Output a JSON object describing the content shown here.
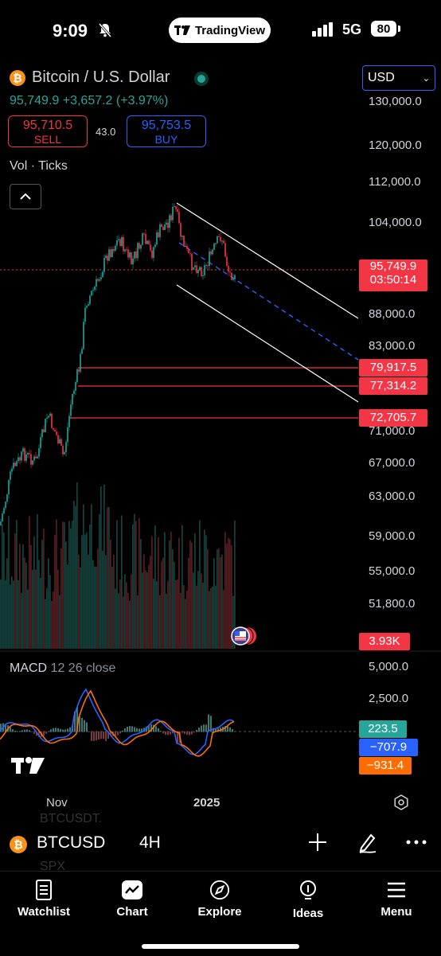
{
  "status": {
    "time": "9:09",
    "app_pill": "TradingView",
    "network": "5G",
    "battery": "80"
  },
  "header": {
    "title": "Bitcoin / U.S. Dollar",
    "price_line": "95,749.9 +3,657.2 (+3.97%)",
    "sell_price": "95,710.5",
    "sell_label": "SELL",
    "spread": "43.0",
    "buy_price": "95,753.5",
    "buy_label": "BUY",
    "vol_label": "Vol · Ticks",
    "currency": "USD"
  },
  "price_axis": [
    "130,000.0",
    "120,000.0",
    "112,000.0",
    "104,000.0",
    "88,000.0",
    "83,000.0",
    "71,000.0",
    "67,000.0",
    "63,000.0",
    "59,000.0",
    "55,000.0",
    "51,800.0"
  ],
  "current_price": {
    "value": "95,749.9",
    "countdown": "03:50:14"
  },
  "level_tags": [
    "79,917.5",
    "77,314.2",
    "72,705.7"
  ],
  "volume_tag": "3.93K",
  "macd": {
    "label": "MACD",
    "params": "12 26 close",
    "axis": [
      "5,000.0",
      "2,500.0"
    ],
    "tags": {
      "hist": "223.5",
      "macd": "−707.9",
      "signal": "−931.4"
    }
  },
  "time_axis": {
    "nov": "Nov",
    "year": "2025"
  },
  "toolbar": {
    "symbol": "BTCUSD",
    "interval": "4H",
    "ghost1": "BTCUSDT.",
    "ghost2": "SPX"
  },
  "nav": [
    "Watchlist",
    "Chart",
    "Explore",
    "Ideas",
    "Menu"
  ],
  "colors": {
    "up": "#26a69a",
    "down": "#f23645",
    "accent": "#2962ff",
    "orange": "#ff6d00"
  }
}
